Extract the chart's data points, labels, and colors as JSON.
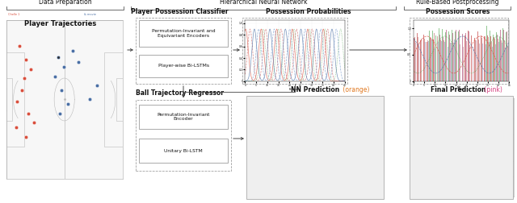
{
  "section_labels": [
    "Data Preparation",
    "Hierarchical Neural Network",
    "Rule-Based Postprocessing"
  ],
  "subsection_titles": {
    "player_traj": "Player Trajectories",
    "poss_classifier": "Player Possession Classifier",
    "poss_probs": "Possession Probabilities",
    "poss_scores": "Possession Scores",
    "ball_regressor": "Ball Trajectory Regressor",
    "nn_pred": "NN Prediction",
    "nn_pred_color_word": " (orange)",
    "final_pred": "Final Prediction",
    "final_pred_color_word": " (pink)"
  },
  "classifier_boxes": [
    "Permutation-Invariant and\nEquivariant Encoders",
    "Player-wise Bi-LSTMs"
  ],
  "regressor_boxes": [
    "Permutation-Invariant\nEncoder",
    "Unitary Bi-LSTM"
  ],
  "bg_color": "#ffffff",
  "text_color": "#111111",
  "red_color": "#d94f3d",
  "blue_color": "#4a6fa5",
  "orange_color": "#e07820",
  "pink_color": "#d44080",
  "green_color": "#3a9a3a",
  "arrow_color": "#444444",
  "box_edge": "#999999",
  "field_line": "#bbbbbb",
  "field_bg": "#f7f7f7"
}
